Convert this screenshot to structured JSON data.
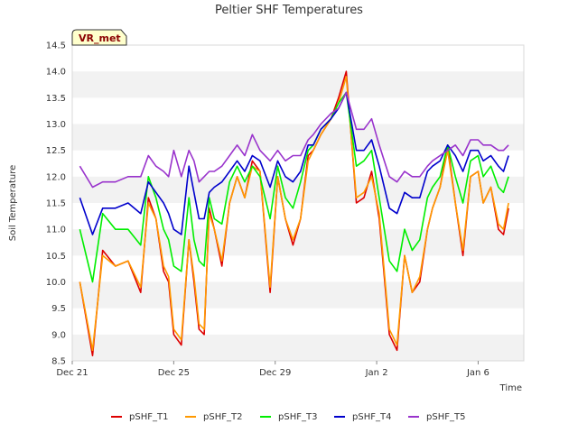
{
  "chart_data": {
    "type": "line",
    "title": "Peltier SHF Temperatures",
    "xlabel": "Time",
    "ylabel": "Soil Temperature",
    "badge": "VR_met",
    "x_ticks": [
      "Dec 21",
      "Dec 25",
      "Dec 29",
      "Jan 2",
      "Jan 6"
    ],
    "y_ticks": [
      "8.5",
      "9.0",
      "9.5",
      "10.0",
      "10.5",
      "11.0",
      "11.5",
      "12.0",
      "12.5",
      "13.0",
      "13.5",
      "14.0",
      "14.5"
    ],
    "ylim": [
      8.5,
      14.5
    ],
    "xlim_days": [
      0,
      17.8
    ],
    "grid": "horizontal bands",
    "legend_position": "bottom",
    "x_days": [
      0.3,
      0.8,
      1.2,
      1.7,
      2.2,
      2.7,
      3.0,
      3.3,
      3.6,
      3.8,
      4.0,
      4.3,
      4.6,
      4.8,
      5.0,
      5.2,
      5.4,
      5.6,
      5.9,
      6.2,
      6.5,
      6.8,
      7.1,
      7.4,
      7.8,
      8.1,
      8.4,
      8.7,
      9.0,
      9.3,
      9.5,
      9.8,
      10.2,
      10.5,
      10.8,
      11.2,
      11.5,
      11.8,
      12.1,
      12.5,
      12.8,
      13.1,
      13.4,
      13.7,
      14.0,
      14.2,
      14.5,
      14.8,
      15.1,
      15.4,
      15.7,
      16.0,
      16.2,
      16.5,
      16.8,
      17.0,
      17.2
    ],
    "series": [
      {
        "name": "pSHF_T1",
        "color": "#dd0000",
        "values": [
          10.0,
          8.6,
          10.6,
          10.3,
          10.4,
          9.8,
          11.6,
          11.2,
          10.2,
          10.0,
          9.0,
          8.8,
          10.8,
          10.0,
          9.1,
          9.0,
          11.4,
          11.0,
          10.3,
          11.5,
          12.0,
          11.6,
          12.3,
          12.1,
          9.8,
          12.0,
          11.2,
          10.7,
          11.2,
          12.4,
          12.5,
          12.8,
          13.1,
          13.5,
          14.0,
          11.5,
          11.6,
          12.1,
          11.2,
          9.0,
          8.7,
          10.5,
          9.8,
          10.0,
          11.0,
          11.4,
          11.8,
          12.6,
          11.5,
          10.5,
          12.0,
          12.1,
          11.5,
          11.8,
          11.0,
          10.9,
          11.4
        ]
      },
      {
        "name": "pSHF_T2",
        "color": "#ff9900",
        "values": [
          10.0,
          8.7,
          10.5,
          10.3,
          10.4,
          9.9,
          11.5,
          11.2,
          10.3,
          10.1,
          9.1,
          8.9,
          10.8,
          10.1,
          9.2,
          9.1,
          11.3,
          11.0,
          10.4,
          11.5,
          12.0,
          11.6,
          12.2,
          12.1,
          9.9,
          12.0,
          11.2,
          10.8,
          11.2,
          12.3,
          12.5,
          12.8,
          13.1,
          13.4,
          13.9,
          11.6,
          11.7,
          12.0,
          11.3,
          9.1,
          8.8,
          10.5,
          9.8,
          10.1,
          11.0,
          11.4,
          11.8,
          12.5,
          11.5,
          10.6,
          12.0,
          12.1,
          11.5,
          11.8,
          11.1,
          11.0,
          11.5
        ]
      },
      {
        "name": "pSHF_T3",
        "color": "#00ee00",
        "values": [
          11.0,
          10.0,
          11.3,
          11.0,
          11.0,
          10.7,
          12.0,
          11.6,
          11.0,
          10.8,
          10.3,
          10.2,
          11.6,
          10.8,
          10.4,
          10.3,
          11.6,
          11.2,
          11.1,
          11.9,
          12.2,
          11.9,
          12.2,
          12.0,
          11.2,
          12.2,
          11.6,
          11.4,
          11.9,
          12.5,
          12.6,
          12.9,
          13.1,
          13.4,
          13.6,
          12.2,
          12.3,
          12.5,
          11.6,
          10.4,
          10.2,
          11.0,
          10.6,
          10.8,
          11.6,
          11.8,
          12.0,
          12.6,
          12.0,
          11.5,
          12.3,
          12.4,
          12.0,
          12.2,
          11.8,
          11.7,
          12.0
        ]
      },
      {
        "name": "pSHF_T4",
        "color": "#0000cc",
        "values": [
          11.6,
          10.9,
          11.4,
          11.4,
          11.5,
          11.3,
          11.9,
          11.7,
          11.5,
          11.3,
          11.0,
          10.9,
          12.2,
          11.7,
          11.2,
          11.2,
          11.7,
          11.8,
          11.9,
          12.1,
          12.3,
          12.1,
          12.4,
          12.3,
          11.8,
          12.3,
          12.0,
          11.9,
          12.1,
          12.6,
          12.6,
          12.9,
          13.1,
          13.3,
          13.6,
          12.5,
          12.5,
          12.7,
          12.2,
          11.4,
          11.3,
          11.7,
          11.6,
          11.6,
          12.1,
          12.2,
          12.3,
          12.6,
          12.4,
          12.1,
          12.5,
          12.5,
          12.3,
          12.4,
          12.2,
          12.1,
          12.4
        ]
      },
      {
        "name": "pSHF_T5",
        "color": "#9933cc",
        "values": [
          12.2,
          11.8,
          11.9,
          11.9,
          12.0,
          12.0,
          12.4,
          12.2,
          12.1,
          12.0,
          12.5,
          12.0,
          12.5,
          12.3,
          11.9,
          12.0,
          12.1,
          12.1,
          12.2,
          12.4,
          12.6,
          12.4,
          12.8,
          12.5,
          12.3,
          12.5,
          12.3,
          12.4,
          12.4,
          12.7,
          12.8,
          13.0,
          13.2,
          13.3,
          13.6,
          12.9,
          12.9,
          13.1,
          12.6,
          12.0,
          11.9,
          12.1,
          12.0,
          12.0,
          12.2,
          12.3,
          12.4,
          12.5,
          12.6,
          12.4,
          12.7,
          12.7,
          12.6,
          12.6,
          12.5,
          12.5,
          12.6
        ]
      }
    ]
  }
}
